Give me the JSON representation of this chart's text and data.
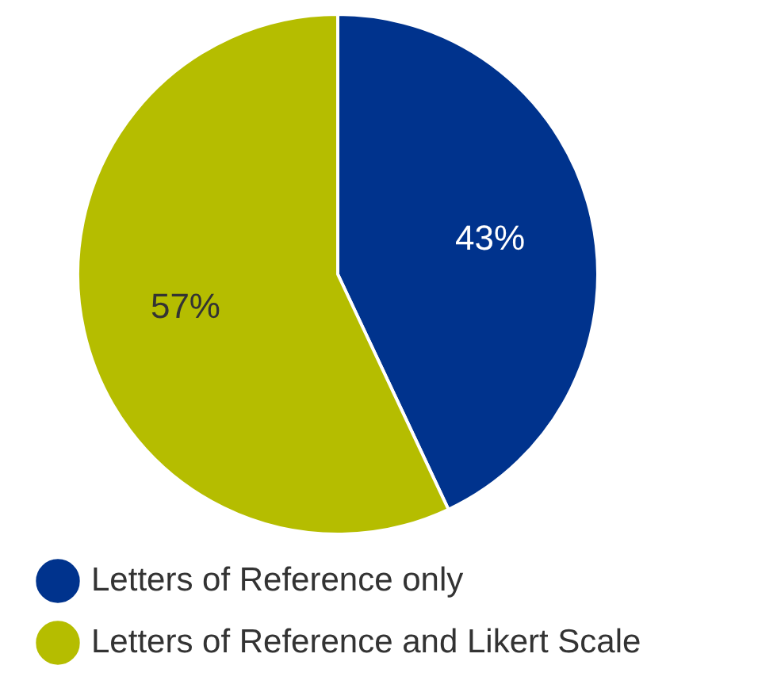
{
  "chart_data": {
    "type": "pie",
    "categories": [
      "Letters of Reference only",
      "Letters of Reference and Likert Scale"
    ],
    "values": [
      43,
      57
    ],
    "colors": [
      "#00338d",
      "#b5bd00"
    ],
    "value_labels": [
      "43%",
      "57%"
    ],
    "legend": "bottom"
  }
}
